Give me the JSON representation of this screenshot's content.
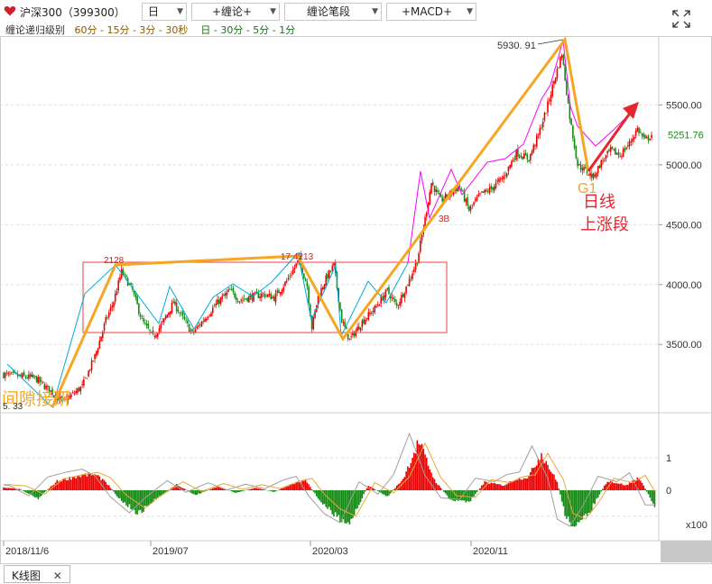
{
  "header": {
    "symbol": "沪深300（399300）",
    "period": "日",
    "menu_chanlun": "+缠论+",
    "menu_bi": "缠论笔段",
    "menu_macd": "+MACD+"
  },
  "levels_bar": {
    "label": "缠论递归级别",
    "group1": "60分 - 15分 - 3分 - 30秒",
    "group2": "日 - 30分 - 5分 - 1分"
  },
  "chart_data": {
    "type": "candlestick",
    "x_labels": [
      "2018/11/6",
      "2019/07",
      "2020/03",
      "2020/11"
    ],
    "y_ticks": [
      "5500.00",
      "5000.00",
      "4500.00",
      "4000.00",
      "3500.00"
    ],
    "ylim": [
      2990,
      6060
    ],
    "current_price": "5251.76",
    "price_path": [
      [
        0,
        3250
      ],
      [
        20,
        3220
      ],
      [
        38,
        3020
      ],
      [
        50,
        3150
      ],
      [
        58,
        3400
      ],
      [
        65,
        3700
      ],
      [
        70,
        3860
      ],
      [
        75,
        4110
      ],
      [
        82,
        3950
      ],
      [
        88,
        3700
      ],
      [
        95,
        3560
      ],
      [
        102,
        3700
      ],
      [
        108,
        3850
      ],
      [
        115,
        3700
      ],
      [
        120,
        3590
      ],
      [
        128,
        3720
      ],
      [
        136,
        3850
      ],
      [
        144,
        3950
      ],
      [
        150,
        3870
      ],
      [
        158,
        3900
      ],
      [
        165,
        3920
      ],
      [
        172,
        3890
      ],
      [
        180,
        4030
      ],
      [
        188,
        4210
      ],
      [
        193,
        3990
      ],
      [
        196,
        3640
      ],
      [
        200,
        3900
      ],
      [
        205,
        4050
      ],
      [
        210,
        4160
      ],
      [
        215,
        3700
      ],
      [
        220,
        3540
      ],
      [
        228,
        3690
      ],
      [
        236,
        3800
      ],
      [
        244,
        3950
      ],
      [
        250,
        3820
      ],
      [
        256,
        3980
      ],
      [
        263,
        4200
      ],
      [
        268,
        4550
      ],
      [
        272,
        4850
      ],
      [
        278,
        4700
      ],
      [
        284,
        4760
      ],
      [
        290,
        4820
      ],
      [
        296,
        4620
      ],
      [
        303,
        4750
      ],
      [
        310,
        4800
      ],
      [
        318,
        4900
      ],
      [
        326,
        5100
      ],
      [
        334,
        5050
      ],
      [
        340,
        5250
      ],
      [
        345,
        5450
      ],
      [
        350,
        5700
      ],
      [
        355,
        5930
      ],
      [
        360,
        5400
      ],
      [
        365,
        5000
      ],
      [
        370,
        4950
      ],
      [
        375,
        4900
      ],
      [
        380,
        5020
      ],
      [
        386,
        5120
      ],
      [
        392,
        5080
      ],
      [
        398,
        5180
      ],
      [
        403,
        5300
      ],
      [
        408,
        5200
      ],
      [
        412,
        5252
      ]
    ],
    "macd": {
      "y_ticks": [
        "1",
        "0"
      ],
      "unit": "x100",
      "hist": [
        [
          0,
          0.08
        ],
        [
          10,
          0.04
        ],
        [
          22,
          -0.25
        ],
        [
          34,
          0.28
        ],
        [
          46,
          0.42
        ],
        [
          56,
          0.5
        ],
        [
          64,
          0.32
        ],
        [
          74,
          -0.28
        ],
        [
          86,
          -0.72
        ],
        [
          96,
          -0.3
        ],
        [
          110,
          0.18
        ],
        [
          122,
          -0.15
        ],
        [
          136,
          0.12
        ],
        [
          148,
          -0.08
        ],
        [
          160,
          0.08
        ],
        [
          172,
          -0.05
        ],
        [
          184,
          0.2
        ],
        [
          192,
          0.3
        ],
        [
          200,
          -0.25
        ],
        [
          210,
          -0.75
        ],
        [
          220,
          -1.0
        ],
        [
          232,
          0.15
        ],
        [
          244,
          -0.2
        ],
        [
          254,
          0.35
        ],
        [
          264,
          1.5
        ],
        [
          274,
          0.32
        ],
        [
          284,
          -0.3
        ],
        [
          296,
          -0.35
        ],
        [
          306,
          0.25
        ],
        [
          318,
          0.15
        ],
        [
          326,
          0.35
        ],
        [
          334,
          0.42
        ],
        [
          342,
          1.15
        ],
        [
          352,
          0.25
        ],
        [
          358,
          -0.9
        ],
        [
          366,
          -1.1
        ],
        [
          374,
          -0.55
        ],
        [
          384,
          0.3
        ],
        [
          396,
          0.15
        ],
        [
          404,
          0.4
        ],
        [
          414,
          -0.5
        ]
      ]
    },
    "annotations": {
      "top_price": "5930. 91",
      "seg_2128": "2128",
      "seg_4213": "17 4213",
      "label_3b": "3B",
      "label_g1": "G1",
      "daily_text_1": "日线",
      "daily_text_2": "上涨段",
      "gap_text": "间隙接研",
      "low_value": "5. 33"
    },
    "colors": {
      "up": "#ee0000",
      "down": "#138a13",
      "bi_line": "#00aadd",
      "bi_pink": "#ff00ff",
      "segment_orange": "#f5a623",
      "zhongshu_box": "#f06060",
      "arrow_red": "#e52530",
      "macd_dif": "#a0a0a0",
      "macd_dea": "#e8a83a"
    }
  },
  "footer": {
    "tab_label": "K线图",
    "tab_close": "✕"
  }
}
